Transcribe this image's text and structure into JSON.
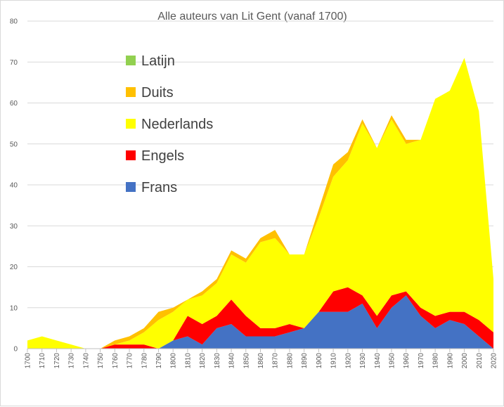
{
  "chart_data": {
    "type": "area",
    "stacked": true,
    "title": "Alle auteurs van Lit Gent (vanaf 1700)",
    "xlabel": "",
    "ylabel": "",
    "ylim": [
      0,
      80
    ],
    "yticks": [
      0,
      10,
      20,
      30,
      40,
      50,
      60,
      70,
      80
    ],
    "grid": true,
    "legend_position": "top-left",
    "x": [
      1700,
      1710,
      1720,
      1730,
      1740,
      1750,
      1760,
      1770,
      1780,
      1790,
      1800,
      1810,
      1820,
      1830,
      1840,
      1850,
      1860,
      1870,
      1880,
      1890,
      1900,
      1910,
      1920,
      1930,
      1940,
      1950,
      1960,
      1970,
      1980,
      1990,
      2000,
      2010,
      2020
    ],
    "series": [
      {
        "name": "Frans",
        "color": "#4472c4",
        "values": [
          0,
          0,
          0,
          0,
          0,
          0,
          0,
          0,
          0,
          0,
          2,
          3,
          1,
          5,
          6,
          3,
          3,
          3,
          4,
          5,
          9,
          9,
          9,
          11,
          5,
          10,
          13,
          8,
          5,
          7,
          6,
          3,
          0
        ]
      },
      {
        "name": "Engels",
        "color": "#ff0000",
        "values": [
          0,
          0,
          0,
          0,
          0,
          0,
          1,
          1,
          1,
          0,
          0,
          5,
          5,
          3,
          6,
          5,
          2,
          2,
          2,
          0,
          0,
          5,
          6,
          2,
          3,
          3,
          1,
          2,
          3,
          2,
          3,
          4,
          4
        ]
      },
      {
        "name": "Nederlands",
        "color": "#ffff00",
        "values": [
          2,
          3,
          2,
          1,
          0,
          0,
          0,
          1,
          3,
          7,
          7,
          4,
          7,
          8,
          11,
          13,
          21,
          22,
          17,
          18,
          23,
          28,
          31,
          42,
          41,
          43,
          36,
          41,
          53,
          54,
          62,
          51,
          13
        ]
      },
      {
        "name": "Duits",
        "color": "#ffc000",
        "values": [
          0,
          0,
          0,
          0,
          0,
          0,
          1,
          1,
          1,
          2,
          1,
          0,
          1,
          1,
          1,
          1,
          1,
          2,
          0,
          0,
          2,
          3,
          2,
          1,
          0,
          1,
          1,
          0,
          0,
          0,
          0,
          0,
          0
        ]
      },
      {
        "name": "Latijn",
        "color": "#92d050",
        "values": [
          0,
          0,
          0,
          0,
          0,
          0,
          0,
          0,
          0,
          0,
          0,
          0,
          0,
          0,
          0,
          0,
          0,
          0,
          0,
          0,
          0,
          0,
          0,
          0,
          0,
          0,
          0,
          0,
          0,
          0,
          0,
          0,
          0
        ]
      }
    ],
    "legend": [
      "Latijn",
      "Duits",
      "Nederlands",
      "Engels",
      "Frans"
    ]
  }
}
